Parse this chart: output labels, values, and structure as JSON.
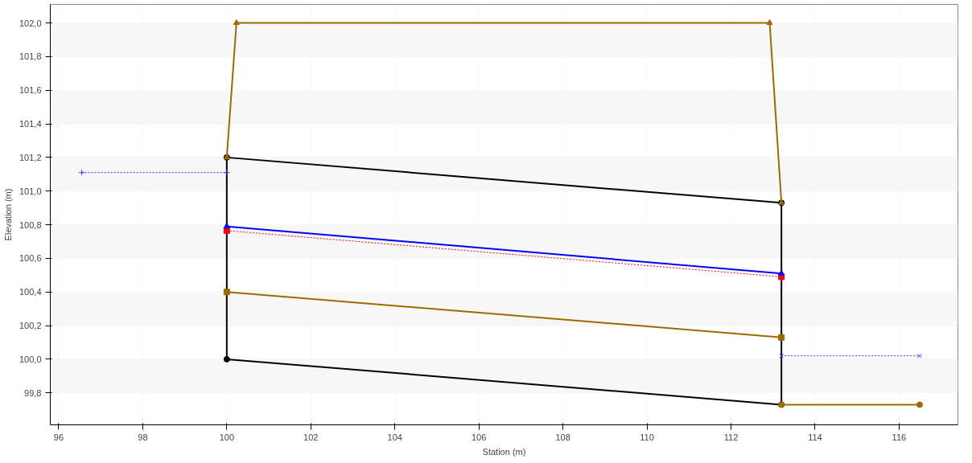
{
  "chart_data": {
    "type": "line",
    "xlabel": "Station (m)",
    "ylabel": "Elevation (m)",
    "xlim": [
      95.8,
      117.4
    ],
    "ylim": [
      99.61,
      102.11
    ],
    "xticks": [
      96,
      98,
      100,
      102,
      104,
      106,
      108,
      110,
      112,
      114,
      116
    ],
    "yticks": [
      {
        "value": 99.8,
        "label": "99,8"
      },
      {
        "value": 100.0,
        "label": "100,0"
      },
      {
        "value": 100.2,
        "label": "100,2"
      },
      {
        "value": 100.4,
        "label": "100,4"
      },
      {
        "value": 100.6,
        "label": "100,6"
      },
      {
        "value": 100.8,
        "label": "100,8"
      },
      {
        "value": 101.0,
        "label": "101,0"
      },
      {
        "value": 101.2,
        "label": "101,2"
      },
      {
        "value": 101.4,
        "label": "101,4"
      },
      {
        "value": 101.6,
        "label": "101,6"
      },
      {
        "value": 101.8,
        "label": "101,8"
      },
      {
        "value": 102.0,
        "label": "102,0"
      }
    ],
    "grid": true,
    "bands": [
      {
        "axis": "y",
        "from": 99.8,
        "to": 100.0,
        "color": "#f7f7f7"
      },
      {
        "axis": "y",
        "from": 100.2,
        "to": 100.4,
        "color": "#f7f7f7"
      },
      {
        "axis": "y",
        "from": 100.6,
        "to": 100.8,
        "color": "#f7f7f7"
      },
      {
        "axis": "y",
        "from": 101.0,
        "to": 101.2,
        "color": "#f7f7f7"
      },
      {
        "axis": "y",
        "from": 101.4,
        "to": 101.6,
        "color": "#f7f7f7"
      },
      {
        "axis": "y",
        "from": 101.8,
        "to": 102.0,
        "color": "#f7f7f7"
      }
    ],
    "series": [
      {
        "color": "#000000",
        "x": [
          100,
          113.2
        ],
        "values": [
          101.2,
          100.93
        ],
        "marker": "circle",
        "line_style": "solid"
      },
      {
        "color": "#000000",
        "x": [
          100,
          113.2
        ],
        "values": [
          100.0,
          99.73
        ],
        "marker": "circle",
        "line_style": "solid"
      },
      {
        "color": "#000000",
        "x": [
          100,
          100
        ],
        "values": [
          100.0,
          101.2
        ],
        "line_style": "solid"
      },
      {
        "color": "#000000",
        "x": [
          113.2,
          113.2
        ],
        "values": [
          99.73,
          100.93
        ],
        "line_style": "solid"
      },
      {
        "color": "#9c6a00",
        "x": [
          100,
          100.23,
          112.92,
          113.2
        ],
        "values": [
          101.2,
          102.0,
          102.0,
          100.93
        ],
        "marker": "triangle",
        "line_style": "solid"
      },
      {
        "color": "#9c6a00",
        "x": [
          100,
          113.2
        ],
        "values": [
          100.4,
          100.13
        ],
        "marker": "square",
        "line_style": "solid"
      },
      {
        "color": "#9c6a00",
        "x": [
          113.2,
          116.49
        ],
        "values": [
          99.73,
          99.73
        ],
        "marker": "circle",
        "line_style": "solid"
      },
      {
        "color": "#ff0000",
        "x": [
          100,
          113.2
        ],
        "values": [
          100.765,
          100.49
        ],
        "marker": "square",
        "line_style": "dotted"
      },
      {
        "color": "#0000ff",
        "x": [
          100,
          113.2
        ],
        "values": [
          100.79,
          100.51
        ],
        "marker": "triangle",
        "line_style": "solid"
      },
      {
        "color": "#3333ff",
        "x": [
          96.55,
          100
        ],
        "values": [
          101.11,
          101.11
        ],
        "marker": "cross",
        "line_style": "dotted"
      },
      {
        "color": "#3333ff",
        "x": [
          113.2,
          116.49
        ],
        "values": [
          100.02,
          100.02
        ],
        "marker": "x",
        "line_style": "dotted"
      }
    ]
  }
}
